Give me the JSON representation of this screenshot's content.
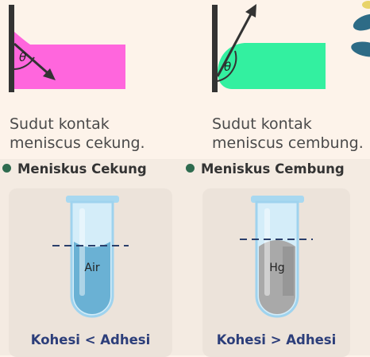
{
  "angle_symbol": "θ",
  "concave": {
    "caption_line1": "Sudut kontak",
    "caption_line2": "meniscus cekung.",
    "heading": "Meniskus Cekung",
    "liquid_label": "Air",
    "relation": "Kohesi < Adhesi",
    "fill_color": "#ff66dd",
    "liquid_color": "#6ab1d4"
  },
  "convex": {
    "caption_line1": "Sudut kontak",
    "caption_line2": "meniscus cembung.",
    "heading": "Meniskus Cembung",
    "liquid_label": "Hg",
    "relation": "Kohesi > Adhesi",
    "fill_color": "#33f0a0",
    "liquid_color": "#a9a9a9"
  },
  "colors": {
    "wall": "#333333",
    "bullet": "#2e6b4f",
    "relation_text": "#2c3e7a",
    "tube_glass": "#bfe3f5",
    "leaf": "#2d6b86"
  }
}
